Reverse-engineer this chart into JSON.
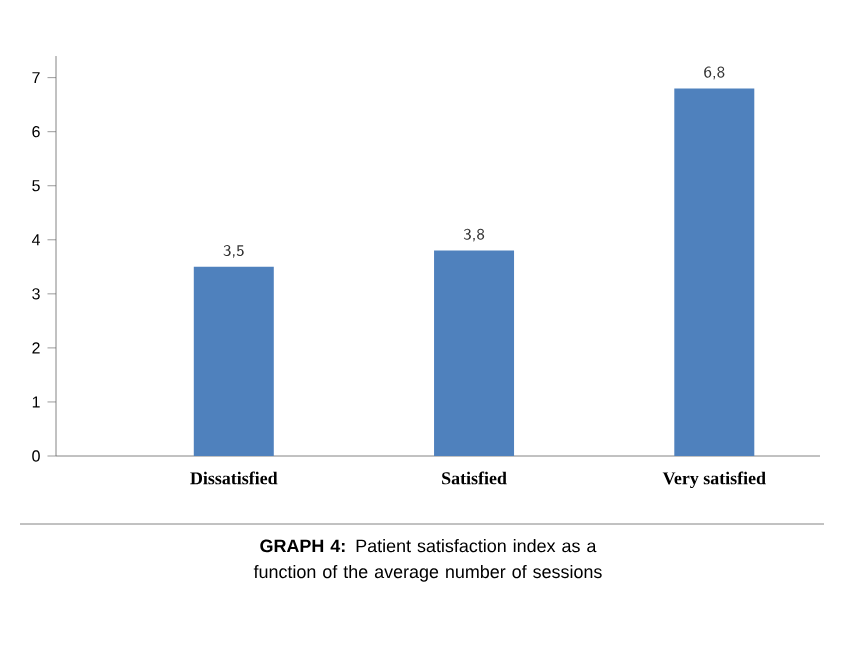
{
  "chart_data": {
    "type": "bar",
    "categories": [
      "Dissatisfied",
      "Satisfied",
      "Very satisfied"
    ],
    "values": [
      3.5,
      3.8,
      6.8
    ],
    "value_labels": [
      "3,5",
      "3,8",
      "6,8"
    ],
    "color": "#4f81bd",
    "ylim": [
      0,
      7.4
    ],
    "yticks": [
      0,
      1,
      2,
      3,
      4,
      5,
      6,
      7
    ],
    "annotations": [
      "**GRAPH 4:** Patient satisfaction index as a function of the average number of sessions"
    ]
  }
}
